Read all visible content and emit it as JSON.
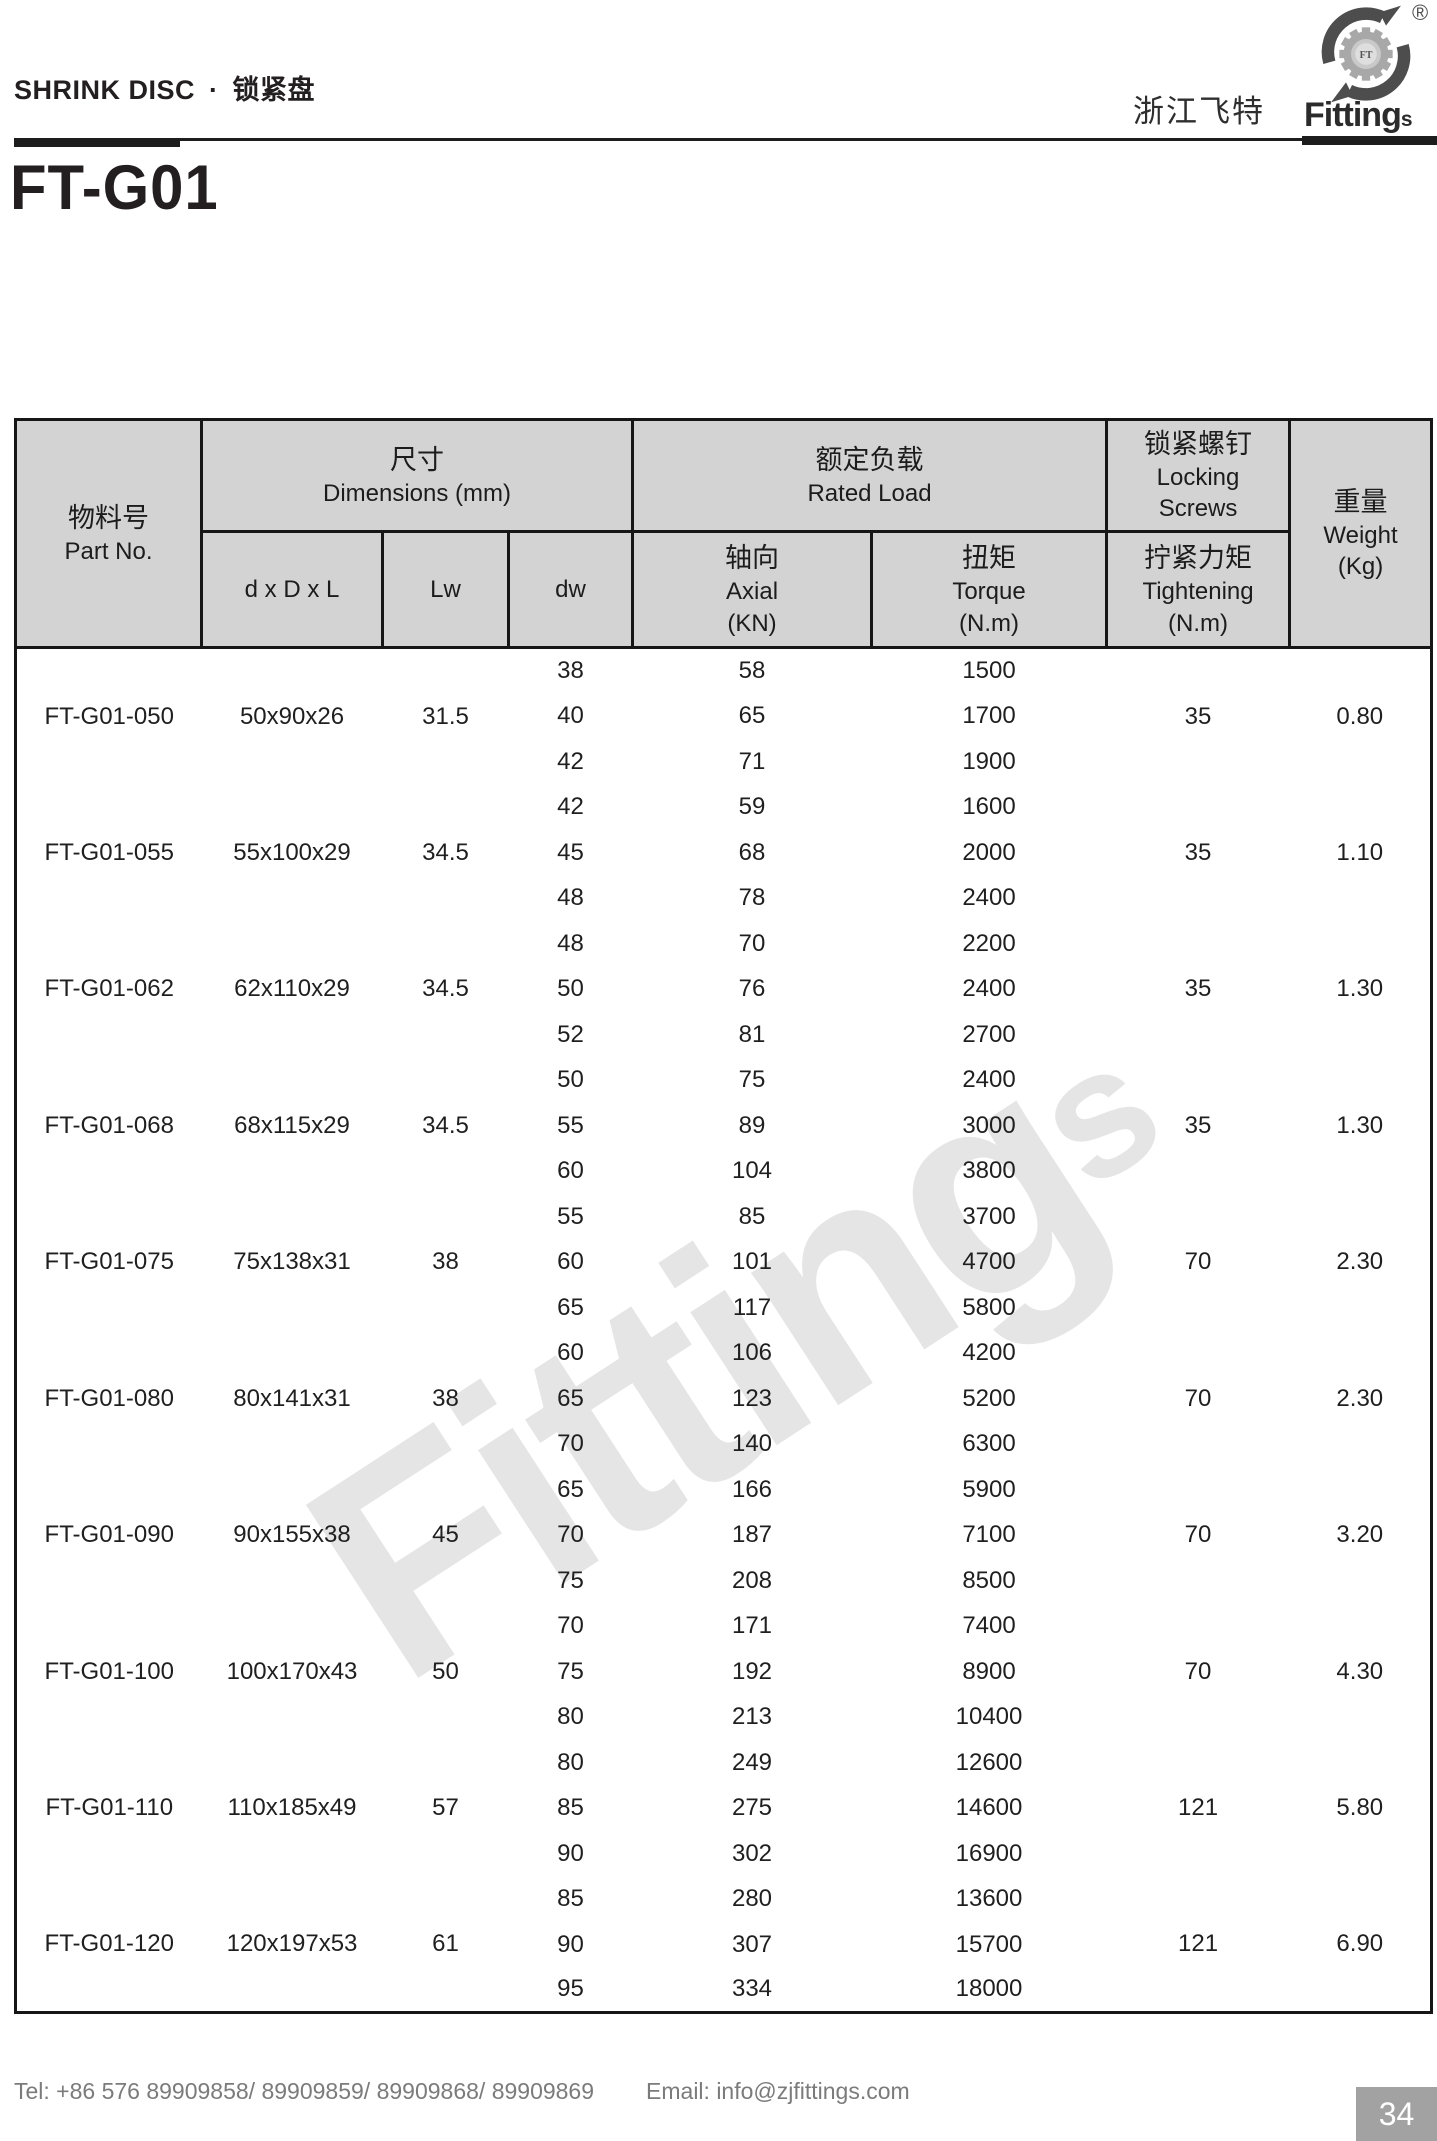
{
  "header": {
    "section_title_en": "SHRINK DISC",
    "section_sep": "·",
    "section_title_cn": "锁紧盘",
    "brand_cn": "浙江飞特",
    "brand_en": "Fitting",
    "brand_en_suffix": "s",
    "registered_mark": "®",
    "logo_mark": "FT",
    "model_title": "FT-G01"
  },
  "watermark": {
    "text": "Fitting",
    "suffix": "s"
  },
  "colors": {
    "table_header_bg": "#d3d3d3",
    "band_bg": "#efefef",
    "page_box_bg": "#a2a2a2",
    "watermark": "#e5e5e5"
  },
  "table": {
    "header_labels": {
      "part_cn": "物料号",
      "part_en": "Part No.",
      "dim_cn": "尺寸",
      "dim_en": "Dimensions (mm)",
      "col_dxdxl": "d x D x L",
      "col_lw": "Lw",
      "col_dw": "dw",
      "load_cn": "额定负载",
      "load_en": "Rated Load",
      "axial_cn": "轴向",
      "axial_en": "Axial",
      "axial_unit": "(KN)",
      "torque_cn": "扭矩",
      "torque_en": "Torque",
      "torque_unit": "(N.m)",
      "lock_cn": "锁紧螺钉",
      "lock_en1": "Locking",
      "lock_en2": "Screws",
      "tight_cn": "拧紧力矩",
      "tight_en": "Tightening",
      "tight_unit": "(N.m)",
      "weight_cn": "重量",
      "weight_en": "Weight",
      "weight_unit": "(Kg)"
    },
    "rows": [
      {
        "part_no": "FT-G01-050",
        "dims": "50x90x26",
        "lw": "31.5",
        "tightening": "35",
        "weight": "0.80",
        "variants": [
          [
            "38",
            "58",
            "1500"
          ],
          [
            "40",
            "65",
            "1700"
          ],
          [
            "42",
            "71",
            "1900"
          ]
        ]
      },
      {
        "part_no": "FT-G01-055",
        "dims": "55x100x29",
        "lw": "34.5",
        "tightening": "35",
        "weight": "1.10",
        "variants": [
          [
            "42",
            "59",
            "1600"
          ],
          [
            "45",
            "68",
            "2000"
          ],
          [
            "48",
            "78",
            "2400"
          ]
        ]
      },
      {
        "part_no": "FT-G01-062",
        "dims": "62x110x29",
        "lw": "34.5",
        "tightening": "35",
        "weight": "1.30",
        "variants": [
          [
            "48",
            "70",
            "2200"
          ],
          [
            "50",
            "76",
            "2400"
          ],
          [
            "52",
            "81",
            "2700"
          ]
        ]
      },
      {
        "part_no": "FT-G01-068",
        "dims": "68x115x29",
        "lw": "34.5",
        "tightening": "35",
        "weight": "1.30",
        "variants": [
          [
            "50",
            "75",
            "2400"
          ],
          [
            "55",
            "89",
            "3000"
          ],
          [
            "60",
            "104",
            "3800"
          ]
        ]
      },
      {
        "part_no": "FT-G01-075",
        "dims": "75x138x31",
        "lw": "38",
        "tightening": "70",
        "weight": "2.30",
        "variants": [
          [
            "55",
            "85",
            "3700"
          ],
          [
            "60",
            "101",
            "4700"
          ],
          [
            "65",
            "117",
            "5800"
          ]
        ]
      },
      {
        "part_no": "FT-G01-080",
        "dims": "80x141x31",
        "lw": "38",
        "tightening": "70",
        "weight": "2.30",
        "variants": [
          [
            "60",
            "106",
            "4200"
          ],
          [
            "65",
            "123",
            "5200"
          ],
          [
            "70",
            "140",
            "6300"
          ]
        ]
      },
      {
        "part_no": "FT-G01-090",
        "dims": "90x155x38",
        "lw": "45",
        "tightening": "70",
        "weight": "3.20",
        "variants": [
          [
            "65",
            "166",
            "5900"
          ],
          [
            "70",
            "187",
            "7100"
          ],
          [
            "75",
            "208",
            "8500"
          ]
        ]
      },
      {
        "part_no": "FT-G01-100",
        "dims": "100x170x43",
        "lw": "50",
        "tightening": "70",
        "weight": "4.30",
        "variants": [
          [
            "70",
            "171",
            "7400"
          ],
          [
            "75",
            "192",
            "8900"
          ],
          [
            "80",
            "213",
            "10400"
          ]
        ]
      },
      {
        "part_no": "FT-G01-110",
        "dims": "110x185x49",
        "lw": "57",
        "tightening": "121",
        "weight": "5.80",
        "variants": [
          [
            "80",
            "249",
            "12600"
          ],
          [
            "85",
            "275",
            "14600"
          ],
          [
            "90",
            "302",
            "16900"
          ]
        ]
      },
      {
        "part_no": "FT-G01-120",
        "dims": "120x197x53",
        "lw": "61",
        "tightening": "121",
        "weight": "6.90",
        "variants": [
          [
            "85",
            "280",
            "13600"
          ],
          [
            "90",
            "307",
            "15700"
          ],
          [
            "95",
            "334",
            "18000"
          ]
        ]
      }
    ]
  },
  "footer": {
    "tel": "Tel: +86 576 89909858/ 89909859/ 89909868/ 89909869",
    "email": "Email: info@zjfittings.com",
    "page_number": "34"
  }
}
